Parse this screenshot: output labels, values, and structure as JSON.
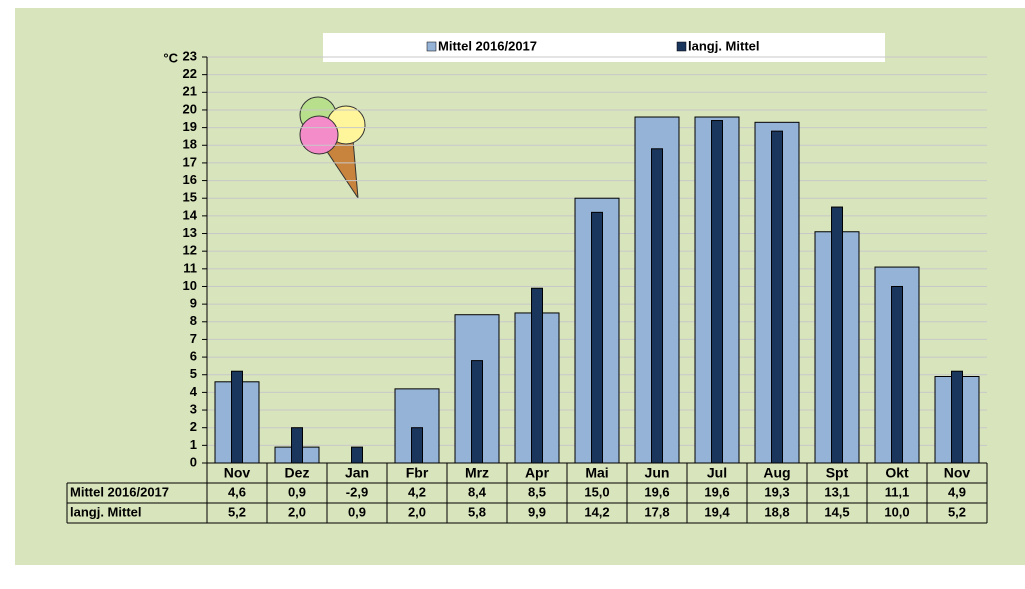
{
  "chart_data": {
    "type": "bar",
    "y_label": "°C",
    "categories": [
      "Nov",
      "Dez",
      "Jan",
      "Fbr",
      "Mrz",
      "Apr",
      "Mai",
      "Jun",
      "Jul",
      "Aug",
      "Spt",
      "Okt",
      "Nov"
    ],
    "series": [
      {
        "name": "Mittel 2016/2017",
        "color": "#95b3d7",
        "values": [
          4.6,
          0.9,
          -2.9,
          4.2,
          8.4,
          8.5,
          15.0,
          19.6,
          19.6,
          19.3,
          13.1,
          11.1,
          4.9
        ],
        "value_labels": [
          "4,6",
          "0,9",
          "-2,9",
          "4,2",
          "8,4",
          "8,5",
          "15,0",
          "19,6",
          "19,6",
          "19,3",
          "13,1",
          "11,1",
          "4,9"
        ]
      },
      {
        "name": "langj. Mittel",
        "color": "#1b365d",
        "values": [
          5.2,
          2.0,
          0.9,
          2.0,
          5.8,
          9.9,
          14.2,
          17.8,
          19.4,
          18.8,
          14.5,
          10.0,
          5.2
        ],
        "value_labels": [
          "5,2",
          "2,0",
          "0,9",
          "2,0",
          "5,8",
          "9,9",
          "14,2",
          "17,8",
          "19,4",
          "18,8",
          "14,5",
          "10,0",
          "5,2"
        ]
      }
    ],
    "ylim": [
      0,
      23
    ],
    "yticks": [
      0,
      1,
      2,
      3,
      4,
      5,
      6,
      7,
      8,
      9,
      10,
      11,
      12,
      13,
      14,
      15,
      16,
      17,
      18,
      19,
      20,
      21,
      22,
      23
    ],
    "grid": true
  }
}
